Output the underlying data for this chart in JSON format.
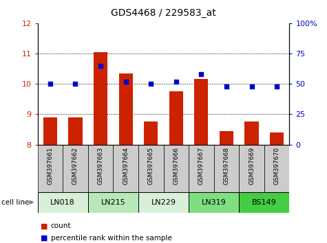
{
  "title": "GDS4468 / 229583_at",
  "samples": [
    "GSM397661",
    "GSM397662",
    "GSM397663",
    "GSM397664",
    "GSM397665",
    "GSM397666",
    "GSM397667",
    "GSM397668",
    "GSM397669",
    "GSM397670"
  ],
  "count_values": [
    8.9,
    8.9,
    11.05,
    10.35,
    8.75,
    9.75,
    10.15,
    8.45,
    8.75,
    8.4
  ],
  "percentile_values": [
    50,
    50,
    65,
    52,
    50,
    52,
    58,
    48,
    48,
    48
  ],
  "ylim_left": [
    8,
    12
  ],
  "ylim_right": [
    0,
    100
  ],
  "yticks_left": [
    8,
    9,
    10,
    11,
    12
  ],
  "yticks_right": [
    0,
    25,
    50,
    75,
    100
  ],
  "cell_lines": [
    {
      "name": "LN018",
      "samples": [
        0,
        1
      ],
      "color": "#d8f0d8"
    },
    {
      "name": "LN215",
      "samples": [
        2,
        3
      ],
      "color": "#b8e8b8"
    },
    {
      "name": "LN229",
      "samples": [
        4,
        5
      ],
      "color": "#d8f0d8"
    },
    {
      "name": "LN319",
      "samples": [
        6,
        7
      ],
      "color": "#80dd80"
    },
    {
      "name": "BS149",
      "samples": [
        8,
        9
      ],
      "color": "#44cc44"
    }
  ],
  "bar_color": "#cc2200",
  "dot_color": "#0000cc",
  "bar_bottom": 8,
  "left_tick_color": "#cc2200",
  "right_tick_color": "#0000cc",
  "sample_bg_color": "#cccccc",
  "legend_count_color": "#cc2200",
  "legend_pct_color": "#0000cc",
  "grid_yticks": [
    9,
    10,
    11
  ]
}
